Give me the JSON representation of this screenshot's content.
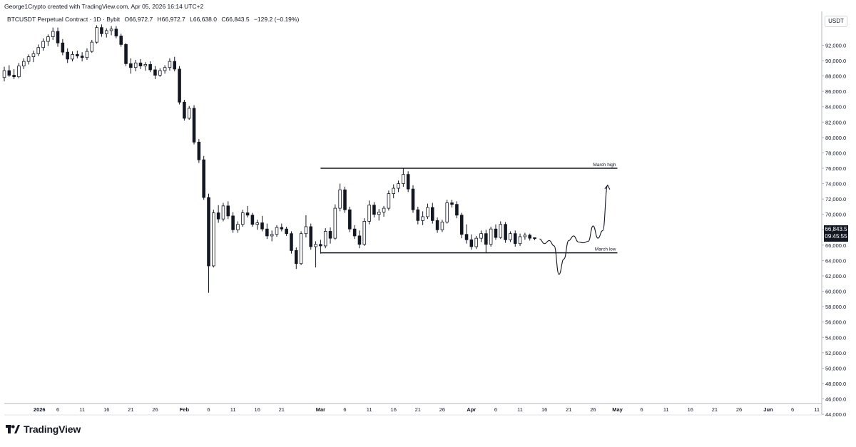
{
  "header": {
    "text": "George1Crypto created with TradingView.com, Apr 05, 2026 16:14 UTC+2"
  },
  "legend": {
    "symbol": "BTCUSDT Perpetual Contract · 1D · Bybit",
    "open": "O66,972.7",
    "high": "H66,972.7",
    "low": "L66,638.0",
    "close": "C66,843.5",
    "change": "−129.2 (−0.19%)"
  },
  "axis_unit": "USDT",
  "last_price": {
    "price": "66,843.5",
    "countdown": "09:45:55"
  },
  "brand": {
    "name": "TradingView"
  },
  "colors": {
    "ink": "#131722",
    "grid": "#f0f3fa",
    "border": "#b2b5be",
    "tag_bg": "#131722"
  },
  "chart_data": {
    "type": "candlestick",
    "title": "BTCUSDT Perpetual Contract · 1D · Bybit",
    "ylim": [
      43500,
      94500
    ],
    "x_start": "2025-12-26",
    "x_end": "2026-06-12",
    "grid": false,
    "y_ticks": [
      "92,000.0",
      "90,000.0",
      "88,000.0",
      "86,000.0",
      "84,000.0",
      "82,000.0",
      "80,000.0",
      "78,000.0",
      "76,000.0",
      "74,000.0",
      "72,000.0",
      "70,000.0",
      "68,000.0",
      "66,000.0",
      "64,000.0",
      "62,000.0",
      "60,000.0",
      "58,000.0",
      "56,000.0",
      "54,000.0",
      "52,000.0",
      "50,000.0",
      "48,000.0",
      "46,000.0",
      "44,000.0"
    ],
    "x_ticks": [
      {
        "date": "2026-01-01",
        "label": "2026"
      },
      {
        "date": "2026-01-06",
        "label": "6"
      },
      {
        "date": "2026-01-11",
        "label": "11"
      },
      {
        "date": "2026-01-16",
        "label": "16"
      },
      {
        "date": "2026-01-21",
        "label": "21"
      },
      {
        "date": "2026-01-26",
        "label": "26"
      },
      {
        "date": "2026-02-01",
        "label": "Feb"
      },
      {
        "date": "2026-02-06",
        "label": "6"
      },
      {
        "date": "2026-02-11",
        "label": "11"
      },
      {
        "date": "2026-02-16",
        "label": "16"
      },
      {
        "date": "2026-02-21",
        "label": "21"
      },
      {
        "date": "2026-03-01",
        "label": "Mar"
      },
      {
        "date": "2026-03-06",
        "label": "6"
      },
      {
        "date": "2026-03-11",
        "label": "11"
      },
      {
        "date": "2026-03-16",
        "label": "16"
      },
      {
        "date": "2026-03-21",
        "label": "21"
      },
      {
        "date": "2026-03-26",
        "label": "26"
      },
      {
        "date": "2026-04-01",
        "label": "Apr"
      },
      {
        "date": "2026-04-06",
        "label": "6"
      },
      {
        "date": "2026-04-11",
        "label": "11"
      },
      {
        "date": "2026-04-16",
        "label": "16"
      },
      {
        "date": "2026-04-21",
        "label": "21"
      },
      {
        "date": "2026-04-26",
        "label": "26"
      },
      {
        "date": "2026-05-01",
        "label": "May"
      },
      {
        "date": "2026-05-06",
        "label": "6"
      },
      {
        "date": "2026-05-11",
        "label": "11"
      },
      {
        "date": "2026-05-16",
        "label": "16"
      },
      {
        "date": "2026-05-21",
        "label": "21"
      },
      {
        "date": "2026-05-26",
        "label": "26"
      },
      {
        "date": "2026-06-01",
        "label": "Jun"
      },
      {
        "date": "2026-06-06",
        "label": "6"
      },
      {
        "date": "2026-06-11",
        "label": "11"
      }
    ],
    "candles": [
      {
        "date": "2025-12-26",
        "o": 87800,
        "h": 89200,
        "l": 87300,
        "c": 88700
      },
      {
        "date": "2025-12-27",
        "o": 88700,
        "h": 89400,
        "l": 87900,
        "c": 88100
      },
      {
        "date": "2025-12-28",
        "o": 88100,
        "h": 88900,
        "l": 87600,
        "c": 87900
      },
      {
        "date": "2025-12-29",
        "o": 87900,
        "h": 89700,
        "l": 87700,
        "c": 89300
      },
      {
        "date": "2025-12-30",
        "o": 89300,
        "h": 90300,
        "l": 88900,
        "c": 89900
      },
      {
        "date": "2025-12-31",
        "o": 89900,
        "h": 90800,
        "l": 89500,
        "c": 90500
      },
      {
        "date": "2026-01-01",
        "o": 90500,
        "h": 91300,
        "l": 89800,
        "c": 90900
      },
      {
        "date": "2026-01-02",
        "o": 90900,
        "h": 92100,
        "l": 90600,
        "c": 91700
      },
      {
        "date": "2026-01-03",
        "o": 91700,
        "h": 92900,
        "l": 91300,
        "c": 92500
      },
      {
        "date": "2026-01-04",
        "o": 92500,
        "h": 93400,
        "l": 91900,
        "c": 93100
      },
      {
        "date": "2026-01-05",
        "o": 93100,
        "h": 94300,
        "l": 92700,
        "c": 93800
      },
      {
        "date": "2026-01-06",
        "o": 93800,
        "h": 94300,
        "l": 91800,
        "c": 92300
      },
      {
        "date": "2026-01-07",
        "o": 92300,
        "h": 92800,
        "l": 90700,
        "c": 91100
      },
      {
        "date": "2026-01-08",
        "o": 91100,
        "h": 91600,
        "l": 89700,
        "c": 90200
      },
      {
        "date": "2026-01-09",
        "o": 90200,
        "h": 91200,
        "l": 89900,
        "c": 90800
      },
      {
        "date": "2026-01-10",
        "o": 90800,
        "h": 91300,
        "l": 90300,
        "c": 90600
      },
      {
        "date": "2026-01-11",
        "o": 90600,
        "h": 91100,
        "l": 89900,
        "c": 90400
      },
      {
        "date": "2026-01-12",
        "o": 90400,
        "h": 91600,
        "l": 90100,
        "c": 91200
      },
      {
        "date": "2026-01-13",
        "o": 91200,
        "h": 92700,
        "l": 91000,
        "c": 92400
      },
      {
        "date": "2026-01-14",
        "o": 92400,
        "h": 94600,
        "l": 92200,
        "c": 94300
      },
      {
        "date": "2026-01-15",
        "o": 94300,
        "h": 94700,
        "l": 93100,
        "c": 93500
      },
      {
        "date": "2026-01-16",
        "o": 93500,
        "h": 94200,
        "l": 93000,
        "c": 93900
      },
      {
        "date": "2026-01-17",
        "o": 93900,
        "h": 94500,
        "l": 93300,
        "c": 94100
      },
      {
        "date": "2026-01-18",
        "o": 94100,
        "h": 94500,
        "l": 92900,
        "c": 93200
      },
      {
        "date": "2026-01-19",
        "o": 93200,
        "h": 93500,
        "l": 91800,
        "c": 92100
      },
      {
        "date": "2026-01-20",
        "o": 92100,
        "h": 92300,
        "l": 89300,
        "c": 89600
      },
      {
        "date": "2026-01-21",
        "o": 89600,
        "h": 90300,
        "l": 88300,
        "c": 89100
      },
      {
        "date": "2026-01-22",
        "o": 89100,
        "h": 90100,
        "l": 88600,
        "c": 89700
      },
      {
        "date": "2026-01-23",
        "o": 89700,
        "h": 90200,
        "l": 88900,
        "c": 89300
      },
      {
        "date": "2026-01-24",
        "o": 89300,
        "h": 89800,
        "l": 88700,
        "c": 89500
      },
      {
        "date": "2026-01-25",
        "o": 89500,
        "h": 89900,
        "l": 88500,
        "c": 88800
      },
      {
        "date": "2026-01-26",
        "o": 88800,
        "h": 89300,
        "l": 87600,
        "c": 88100
      },
      {
        "date": "2026-01-27",
        "o": 88100,
        "h": 89000,
        "l": 87900,
        "c": 88700
      },
      {
        "date": "2026-01-28",
        "o": 88700,
        "h": 89400,
        "l": 88300,
        "c": 89100
      },
      {
        "date": "2026-01-29",
        "o": 89100,
        "h": 90300,
        "l": 88700,
        "c": 89900
      },
      {
        "date": "2026-01-30",
        "o": 89900,
        "h": 90500,
        "l": 88600,
        "c": 88900
      },
      {
        "date": "2026-01-31",
        "o": 88900,
        "h": 89300,
        "l": 84300,
        "c": 84600
      },
      {
        "date": "2026-02-01",
        "o": 84600,
        "h": 84900,
        "l": 82200,
        "c": 82500
      },
      {
        "date": "2026-02-02",
        "o": 82500,
        "h": 84100,
        "l": 82300,
        "c": 83800
      },
      {
        "date": "2026-02-03",
        "o": 83800,
        "h": 84200,
        "l": 79100,
        "c": 79400
      },
      {
        "date": "2026-02-04",
        "o": 79400,
        "h": 79800,
        "l": 76700,
        "c": 77100
      },
      {
        "date": "2026-02-05",
        "o": 77100,
        "h": 77600,
        "l": 71900,
        "c": 72200
      },
      {
        "date": "2026-02-06",
        "o": 72200,
        "h": 72700,
        "l": 59800,
        "c": 63300
      },
      {
        "date": "2026-02-07",
        "o": 63300,
        "h": 70600,
        "l": 63100,
        "c": 70200
      },
      {
        "date": "2026-02-08",
        "o": 70200,
        "h": 71200,
        "l": 68900,
        "c": 69400
      },
      {
        "date": "2026-02-09",
        "o": 69400,
        "h": 71500,
        "l": 69100,
        "c": 71100
      },
      {
        "date": "2026-02-10",
        "o": 71100,
        "h": 71700,
        "l": 69400,
        "c": 69800
      },
      {
        "date": "2026-02-11",
        "o": 69800,
        "h": 70300,
        "l": 67600,
        "c": 68000
      },
      {
        "date": "2026-02-12",
        "o": 68000,
        "h": 69100,
        "l": 67600,
        "c": 68700
      },
      {
        "date": "2026-02-13",
        "o": 68700,
        "h": 70600,
        "l": 68400,
        "c": 70200
      },
      {
        "date": "2026-02-14",
        "o": 70200,
        "h": 71100,
        "l": 69600,
        "c": 69900
      },
      {
        "date": "2026-02-15",
        "o": 69900,
        "h": 70200,
        "l": 68400,
        "c": 68700
      },
      {
        "date": "2026-02-16",
        "o": 68700,
        "h": 69300,
        "l": 68000,
        "c": 68900
      },
      {
        "date": "2026-02-17",
        "o": 68900,
        "h": 69800,
        "l": 67800,
        "c": 68100
      },
      {
        "date": "2026-02-18",
        "o": 68100,
        "h": 68800,
        "l": 66800,
        "c": 67200
      },
      {
        "date": "2026-02-19",
        "o": 67200,
        "h": 67900,
        "l": 66500,
        "c": 67400
      },
      {
        "date": "2026-02-20",
        "o": 67400,
        "h": 68600,
        "l": 67100,
        "c": 68300
      },
      {
        "date": "2026-02-21",
        "o": 68300,
        "h": 68800,
        "l": 67800,
        "c": 68100
      },
      {
        "date": "2026-02-22",
        "o": 68100,
        "h": 68400,
        "l": 67200,
        "c": 67500
      },
      {
        "date": "2026-02-23",
        "o": 67500,
        "h": 67800,
        "l": 64900,
        "c": 65300
      },
      {
        "date": "2026-02-24",
        "o": 65300,
        "h": 65700,
        "l": 62900,
        "c": 63600
      },
      {
        "date": "2026-02-25",
        "o": 63600,
        "h": 67800,
        "l": 63400,
        "c": 67500
      },
      {
        "date": "2026-02-26",
        "o": 67500,
        "h": 69900,
        "l": 67000,
        "c": 68400
      },
      {
        "date": "2026-02-27",
        "o": 68400,
        "h": 68800,
        "l": 65400,
        "c": 65800
      },
      {
        "date": "2026-02-28",
        "o": 65800,
        "h": 66500,
        "l": 63100,
        "c": 66100
      },
      {
        "date": "2026-03-01",
        "o": 66100,
        "h": 66700,
        "l": 64900,
        "c": 65900
      },
      {
        "date": "2026-03-02",
        "o": 65900,
        "h": 68200,
        "l": 65600,
        "c": 67800
      },
      {
        "date": "2026-03-03",
        "o": 67800,
        "h": 68300,
        "l": 66200,
        "c": 66900
      },
      {
        "date": "2026-03-04",
        "o": 66900,
        "h": 71300,
        "l": 66700,
        "c": 70800
      },
      {
        "date": "2026-03-05",
        "o": 70800,
        "h": 74000,
        "l": 70400,
        "c": 73200
      },
      {
        "date": "2026-03-06",
        "o": 73200,
        "h": 73600,
        "l": 70200,
        "c": 70600
      },
      {
        "date": "2026-03-07",
        "o": 70600,
        "h": 71000,
        "l": 67700,
        "c": 68100
      },
      {
        "date": "2026-03-08",
        "o": 68100,
        "h": 68600,
        "l": 66800,
        "c": 67200
      },
      {
        "date": "2026-03-09",
        "o": 67200,
        "h": 67900,
        "l": 65600,
        "c": 66100
      },
      {
        "date": "2026-03-10",
        "o": 66100,
        "h": 69500,
        "l": 65900,
        "c": 69100
      },
      {
        "date": "2026-03-11",
        "o": 69100,
        "h": 71800,
        "l": 68700,
        "c": 71200
      },
      {
        "date": "2026-03-12",
        "o": 71200,
        "h": 71600,
        "l": 69600,
        "c": 70000
      },
      {
        "date": "2026-03-13",
        "o": 70000,
        "h": 70700,
        "l": 69200,
        "c": 70300
      },
      {
        "date": "2026-03-14",
        "o": 70300,
        "h": 71100,
        "l": 69700,
        "c": 70800
      },
      {
        "date": "2026-03-15",
        "o": 70800,
        "h": 73100,
        "l": 70500,
        "c": 72700
      },
      {
        "date": "2026-03-16",
        "o": 72700,
        "h": 73900,
        "l": 72100,
        "c": 73400
      },
      {
        "date": "2026-03-17",
        "o": 73400,
        "h": 74400,
        "l": 72900,
        "c": 74000
      },
      {
        "date": "2026-03-18",
        "o": 74000,
        "h": 76000,
        "l": 73600,
        "c": 75200
      },
      {
        "date": "2026-03-19",
        "o": 75200,
        "h": 75600,
        "l": 72900,
        "c": 73300
      },
      {
        "date": "2026-03-20",
        "o": 73300,
        "h": 73800,
        "l": 70200,
        "c": 70600
      },
      {
        "date": "2026-03-21",
        "o": 70600,
        "h": 71000,
        "l": 68700,
        "c": 69200
      },
      {
        "date": "2026-03-22",
        "o": 69200,
        "h": 70400,
        "l": 68600,
        "c": 69700
      },
      {
        "date": "2026-03-23",
        "o": 69700,
        "h": 71400,
        "l": 69400,
        "c": 70900
      },
      {
        "date": "2026-03-24",
        "o": 70900,
        "h": 71500,
        "l": 68800,
        "c": 69200
      },
      {
        "date": "2026-03-25",
        "o": 69200,
        "h": 69600,
        "l": 67600,
        "c": 68000
      },
      {
        "date": "2026-03-26",
        "o": 68000,
        "h": 69300,
        "l": 67700,
        "c": 69000
      },
      {
        "date": "2026-03-27",
        "o": 69000,
        "h": 71900,
        "l": 68800,
        "c": 71500
      },
      {
        "date": "2026-03-28",
        "o": 71500,
        "h": 71900,
        "l": 70900,
        "c": 71300
      },
      {
        "date": "2026-03-29",
        "o": 71300,
        "h": 71700,
        "l": 69500,
        "c": 69900
      },
      {
        "date": "2026-03-30",
        "o": 69900,
        "h": 70200,
        "l": 66900,
        "c": 67400
      },
      {
        "date": "2026-03-31",
        "o": 67400,
        "h": 68700,
        "l": 66200,
        "c": 66700
      },
      {
        "date": "2026-04-01",
        "o": 66700,
        "h": 67400,
        "l": 65400,
        "c": 65800
      },
      {
        "date": "2026-04-02",
        "o": 65800,
        "h": 67200,
        "l": 65500,
        "c": 66900
      },
      {
        "date": "2026-04-03",
        "o": 66900,
        "h": 67900,
        "l": 66400,
        "c": 67500
      },
      {
        "date": "2026-04-04",
        "o": 67500,
        "h": 68000,
        "l": 65000,
        "c": 66100
      },
      {
        "date": "2026-04-05",
        "o": 66100,
        "h": 68400,
        "l": 65800,
        "c": 68100
      },
      {
        "date": "2026-04-06",
        "o": 68100,
        "h": 68700,
        "l": 66700,
        "c": 67000
      },
      {
        "date": "2026-04-07",
        "o": 67000,
        "h": 69100,
        "l": 66800,
        "c": 68700
      },
      {
        "date": "2026-04-08",
        "o": 68700,
        "h": 69000,
        "l": 66300,
        "c": 66700
      },
      {
        "date": "2026-04-09",
        "o": 66700,
        "h": 67800,
        "l": 66400,
        "c": 67500
      },
      {
        "date": "2026-04-10",
        "o": 67500,
        "h": 67900,
        "l": 65800,
        "c": 66200
      },
      {
        "date": "2026-04-11",
        "o": 66200,
        "h": 67500,
        "l": 65900,
        "c": 67100
      },
      {
        "date": "2026-04-12",
        "o": 67100,
        "h": 67600,
        "l": 66700,
        "c": 67300
      },
      {
        "date": "2026-04-13",
        "o": 67300,
        "h": 67500,
        "l": 66600,
        "c": 66900
      },
      {
        "date": "2026-04-14",
        "o": 66972.7,
        "h": 66972.7,
        "l": 66638.0,
        "c": 66843.5
      }
    ],
    "levels": [
      {
        "label": "March high",
        "value": 76000,
        "from": "2026-03-01",
        "to": "2026-05-01"
      },
      {
        "label": "March low",
        "value": 65000,
        "from": "2026-03-01",
        "to": "2026-05-01"
      }
    ],
    "projection": [
      {
        "date": "2026-04-15",
        "value": 66800
      },
      {
        "date": "2026-04-16",
        "value": 66200
      },
      {
        "date": "2026-04-17",
        "value": 66600
      },
      {
        "date": "2026-04-18",
        "value": 65900
      },
      {
        "date": "2026-04-19",
        "value": 62200
      },
      {
        "date": "2026-04-20",
        "value": 64200
      },
      {
        "date": "2026-04-21",
        "value": 66600
      },
      {
        "date": "2026-04-22",
        "value": 67200
      },
      {
        "date": "2026-04-23",
        "value": 66400
      },
      {
        "date": "2026-04-24",
        "value": 66300
      },
      {
        "date": "2026-04-25",
        "value": 66500
      },
      {
        "date": "2026-04-26",
        "value": 68500
      },
      {
        "date": "2026-04-27",
        "value": 66900
      },
      {
        "date": "2026-04-28",
        "value": 67900
      },
      {
        "date": "2026-04-29",
        "value": 73800
      }
    ]
  }
}
